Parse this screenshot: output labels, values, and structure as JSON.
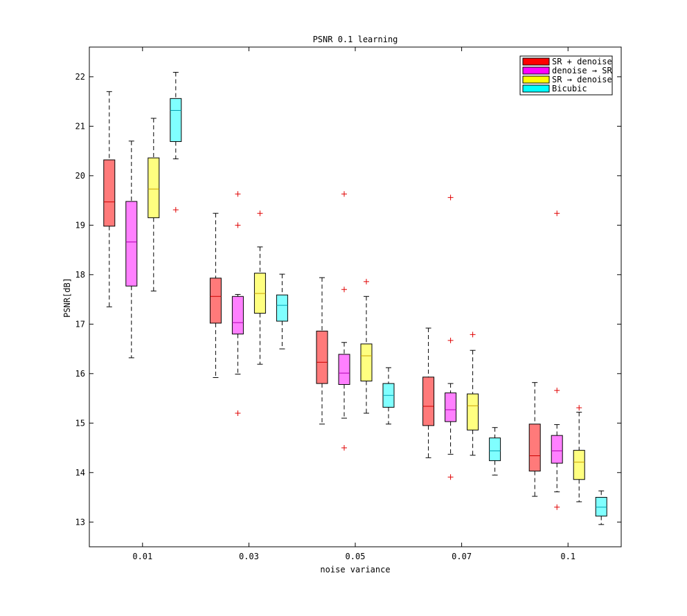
{
  "chart_data": {
    "type": "box",
    "title": "PSNR 0.1 learning",
    "xlabel": "noise variance",
    "ylabel": "PSNR[dB]",
    "ylim": [
      12.5,
      22.6
    ],
    "yticks": [
      13,
      14,
      15,
      16,
      17,
      18,
      19,
      20,
      21,
      22
    ],
    "categories": [
      "0.01",
      "0.03",
      "0.05",
      "0.07",
      "0.1"
    ],
    "legend_position": "top-right",
    "grid": false,
    "series": [
      {
        "name": "SR + denoise",
        "legend_color": "#ff0000",
        "fill": "#ff7a7a",
        "median_color": "#cc0000",
        "boxes": [
          {
            "whisker_low": 17.35,
            "q1": 18.98,
            "median": 19.47,
            "q3": 20.32,
            "whisker_high": 21.7,
            "outliers": []
          },
          {
            "whisker_low": 15.92,
            "q1": 17.02,
            "median": 17.56,
            "q3": 17.93,
            "whisker_high": 19.24,
            "outliers": []
          },
          {
            "whisker_low": 14.98,
            "q1": 15.8,
            "median": 16.23,
            "q3": 16.86,
            "whisker_high": 17.94,
            "outliers": []
          },
          {
            "whisker_low": 14.3,
            "q1": 14.95,
            "median": 15.34,
            "q3": 15.93,
            "whisker_high": 16.92,
            "outliers": []
          },
          {
            "whisker_low": 13.52,
            "q1": 14.03,
            "median": 14.34,
            "q3": 14.98,
            "whisker_high": 15.82,
            "outliers": []
          }
        ]
      },
      {
        "name": "denoise →  SR",
        "legend_color": "#ff00ff",
        "fill": "#ff80ff",
        "median_color": "#b000b0",
        "boxes": [
          {
            "whisker_low": 16.32,
            "q1": 17.77,
            "median": 18.66,
            "q3": 19.48,
            "whisker_high": 20.7,
            "outliers": []
          },
          {
            "whisker_low": 15.99,
            "q1": 16.8,
            "median": 17.03,
            "q3": 17.56,
            "whisker_high": 17.6,
            "outliers": [
              19.63,
              19.0,
              15.2
            ]
          },
          {
            "whisker_low": 15.1,
            "q1": 15.78,
            "median": 16.01,
            "q3": 16.39,
            "whisker_high": 16.63,
            "outliers": [
              19.63,
              17.7,
              14.5
            ]
          },
          {
            "whisker_low": 14.37,
            "q1": 15.03,
            "median": 15.27,
            "q3": 15.61,
            "whisker_high": 15.8,
            "outliers": [
              19.56,
              16.67,
              13.91
            ]
          },
          {
            "whisker_low": 13.61,
            "q1": 14.19,
            "median": 14.44,
            "q3": 14.75,
            "whisker_high": 14.97,
            "outliers": [
              19.24,
              15.66,
              13.3
            ]
          }
        ]
      },
      {
        "name": "SR → denoise",
        "legend_color": "#ffff00",
        "fill": "#ffff80",
        "median_color": "#c8a000",
        "boxes": [
          {
            "whisker_low": 17.67,
            "q1": 19.15,
            "median": 19.73,
            "q3": 20.36,
            "whisker_high": 21.16,
            "outliers": []
          },
          {
            "whisker_low": 16.19,
            "q1": 17.22,
            "median": 17.62,
            "q3": 18.03,
            "whisker_high": 18.56,
            "outliers": [
              19.24
            ]
          },
          {
            "whisker_low": 15.2,
            "q1": 15.85,
            "median": 16.36,
            "q3": 16.6,
            "whisker_high": 17.56,
            "outliers": [
              17.86
            ]
          },
          {
            "whisker_low": 14.35,
            "q1": 14.86,
            "median": 15.35,
            "q3": 15.59,
            "whisker_high": 16.47,
            "outliers": [
              16.79
            ]
          },
          {
            "whisker_low": 13.41,
            "q1": 13.86,
            "median": 14.21,
            "q3": 14.45,
            "whisker_high": 15.22,
            "outliers": [
              15.31
            ]
          }
        ]
      },
      {
        "name": "Bicubic",
        "legend_color": "#00ffff",
        "fill": "#80ffff",
        "median_color": "#00a0b0",
        "boxes": [
          {
            "whisker_low": 20.34,
            "q1": 20.69,
            "median": 21.32,
            "q3": 21.56,
            "whisker_high": 22.09,
            "outliers": [
              19.31
            ]
          },
          {
            "whisker_low": 16.5,
            "q1": 17.06,
            "median": 17.38,
            "q3": 17.59,
            "whisker_high": 18.01,
            "outliers": []
          },
          {
            "whisker_low": 14.98,
            "q1": 15.32,
            "median": 15.56,
            "q3": 15.8,
            "whisker_high": 16.12,
            "outliers": []
          },
          {
            "whisker_low": 13.95,
            "q1": 14.24,
            "median": 14.44,
            "q3": 14.7,
            "whisker_high": 14.91,
            "outliers": []
          },
          {
            "whisker_low": 12.95,
            "q1": 13.12,
            "median": 13.3,
            "q3": 13.5,
            "whisker_high": 13.63,
            "outliers": []
          }
        ]
      }
    ]
  }
}
